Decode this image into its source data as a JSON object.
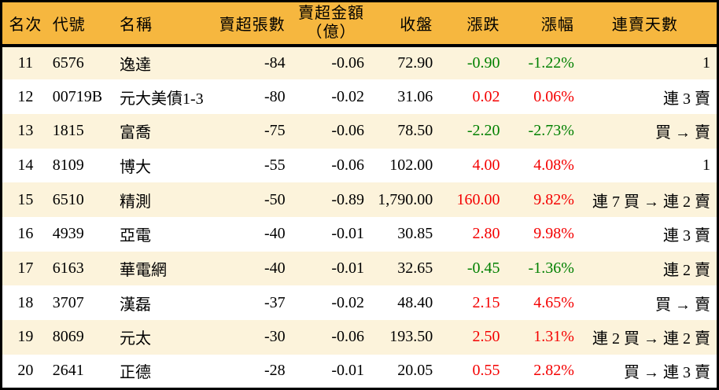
{
  "colors": {
    "header_bg": "#F6B73F",
    "row_bg": "#FFFFFF",
    "row_alt_bg": "#FCF3DB",
    "border": "#000000",
    "text": "#000000",
    "up": "#F40000",
    "down": "#008000"
  },
  "table": {
    "columns": [
      {
        "key": "rank",
        "label": "名次"
      },
      {
        "key": "code",
        "label": "代號"
      },
      {
        "key": "name",
        "label": "名稱"
      },
      {
        "key": "volume",
        "label": "賣超張數"
      },
      {
        "key": "amount",
        "label": "賣超金額",
        "label2": "（億）"
      },
      {
        "key": "close",
        "label": "收盤"
      },
      {
        "key": "change",
        "label": "漲跌"
      },
      {
        "key": "change_pct",
        "label": "漲幅"
      },
      {
        "key": "streak",
        "label": "連賣天數"
      }
    ],
    "rows": [
      {
        "rank": "11",
        "code": "6576",
        "name": "逸達",
        "volume": "-84",
        "amount": "-0.06",
        "close": "72.90",
        "change": "-0.90",
        "change_pct": "-1.22%",
        "trend": "down",
        "streak": "1"
      },
      {
        "rank": "12",
        "code": "00719B",
        "name": "元大美債1-3",
        "volume": "-80",
        "amount": "-0.02",
        "close": "31.06",
        "change": "0.02",
        "change_pct": "0.06%",
        "trend": "up",
        "streak": "連 3 賣"
      },
      {
        "rank": "13",
        "code": "1815",
        "name": "富喬",
        "volume": "-75",
        "amount": "-0.06",
        "close": "78.50",
        "change": "-2.20",
        "change_pct": "-2.73%",
        "trend": "down",
        "streak": "買 → 賣"
      },
      {
        "rank": "14",
        "code": "8109",
        "name": "博大",
        "volume": "-55",
        "amount": "-0.06",
        "close": "102.00",
        "change": "4.00",
        "change_pct": "4.08%",
        "trend": "up",
        "streak": "1"
      },
      {
        "rank": "15",
        "code": "6510",
        "name": "精測",
        "volume": "-50",
        "amount": "-0.89",
        "close": "1,790.00",
        "change": "160.00",
        "change_pct": "9.82%",
        "trend": "up",
        "streak": "連 7 買 → 連 2 賣"
      },
      {
        "rank": "16",
        "code": "4939",
        "name": "亞電",
        "volume": "-40",
        "amount": "-0.01",
        "close": "30.85",
        "change": "2.80",
        "change_pct": "9.98%",
        "trend": "up",
        "streak": "連 3 賣"
      },
      {
        "rank": "17",
        "code": "6163",
        "name": "華電網",
        "volume": "-40",
        "amount": "-0.01",
        "close": "32.65",
        "change": "-0.45",
        "change_pct": "-1.36%",
        "trend": "down",
        "streak": "連 2 賣"
      },
      {
        "rank": "18",
        "code": "3707",
        "name": "漢磊",
        "volume": "-37",
        "amount": "-0.02",
        "close": "48.40",
        "change": "2.15",
        "change_pct": "4.65%",
        "trend": "up",
        "streak": "買 → 賣"
      },
      {
        "rank": "19",
        "code": "8069",
        "name": "元太",
        "volume": "-30",
        "amount": "-0.06",
        "close": "193.50",
        "change": "2.50",
        "change_pct": "1.31%",
        "trend": "up",
        "streak": "連 2 買 → 連 2 賣"
      },
      {
        "rank": "20",
        "code": "2641",
        "name": "正德",
        "volume": "-28",
        "amount": "-0.01",
        "close": "20.05",
        "change": "0.55",
        "change_pct": "2.82%",
        "trend": "up",
        "streak": "買 → 連 3 賣"
      }
    ]
  }
}
